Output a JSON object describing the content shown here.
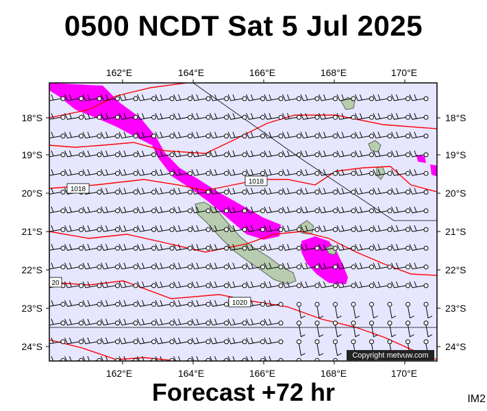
{
  "header": {
    "title": "0500 NCDT Sat 5 Jul 2025"
  },
  "footer": {
    "forecast_label": "Forecast +72 hr",
    "image_code": "IM2"
  },
  "copyright": "Copyright metvuw.com",
  "map": {
    "lon_labels": [
      "162°E",
      "164°E",
      "166°E",
      "168°E",
      "170°E"
    ],
    "lat_labels": [
      "18°S",
      "19°S",
      "20°S",
      "21°S",
      "22°S",
      "23°S",
      "24°S"
    ],
    "isobar_labels": [
      "1018",
      "1018",
      "1020",
      "20"
    ],
    "colors": {
      "ocean": "#e6e6ff",
      "isobar": "#ff0000",
      "rain": "#ff00ff",
      "land": "#b8ccb0",
      "wind_barb": "#000000"
    }
  }
}
